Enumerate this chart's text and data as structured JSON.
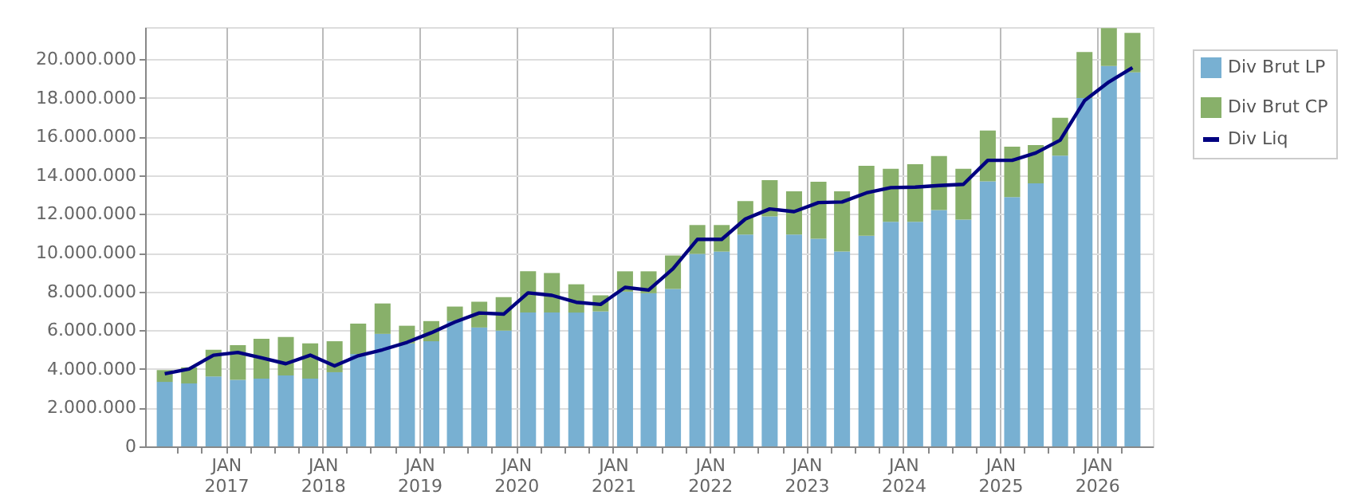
{
  "chart_data": {
    "type": "bar",
    "stacked": true,
    "grid": true,
    "legend": "right",
    "x": [
      "2016-05-15",
      "2016-08-15",
      "2016-11-15",
      "2017-02-15",
      "2017-05-15",
      "2017-08-15",
      "2017-11-15",
      "2018-02-15",
      "2018-05-15",
      "2018-08-15",
      "2018-11-15",
      "2019-02-15",
      "2019-05-15",
      "2019-08-15",
      "2019-11-15",
      "2020-02-15",
      "2020-05-15",
      "2020-08-15",
      "2020-11-15",
      "2021-02-15",
      "2021-05-15",
      "2021-08-15",
      "2021-11-15",
      "2022-02-15",
      "2022-05-15",
      "2022-08-15",
      "2022-11-15",
      "2023-02-15",
      "2023-05-15",
      "2023-08-15",
      "2023-11-15",
      "2024-02-15",
      "2024-05-15",
      "2024-08-15",
      "2024-11-15",
      "2025-02-15",
      "2025-05-15",
      "2025-08-15",
      "2025-11-15",
      "2026-02-15",
      "2026-05-15"
    ],
    "xlim": [
      "2016-04-01",
      "2026-07-01"
    ],
    "xticks": [
      {
        "value": "2016-07",
        "label": null
      },
      {
        "value": "2016-10",
        "label": null
      },
      {
        "value": "2017-01",
        "label": "JAN 2017"
      },
      {
        "value": "2017-04",
        "label": null
      },
      {
        "value": "2017-07",
        "label": null
      },
      {
        "value": "2017-10",
        "label": null
      },
      {
        "value": "2018-01",
        "label": "JAN 2018"
      },
      {
        "value": "2018-04",
        "label": null
      },
      {
        "value": "2018-07",
        "label": null
      },
      {
        "value": "2018-10",
        "label": null
      },
      {
        "value": "2019-01",
        "label": "JAN 2019"
      },
      {
        "value": "2019-04",
        "label": null
      },
      {
        "value": "2019-07",
        "label": null
      },
      {
        "value": "2019-10",
        "label": null
      },
      {
        "value": "2020-01",
        "label": "JAN 2020"
      },
      {
        "value": "2020-04",
        "label": null
      },
      {
        "value": "2020-07",
        "label": null
      },
      {
        "value": "2020-10",
        "label": null
      },
      {
        "value": "2021-01",
        "label": "JAN 2021"
      },
      {
        "value": "2021-04",
        "label": null
      },
      {
        "value": "2021-07",
        "label": null
      },
      {
        "value": "2021-10",
        "label": null
      },
      {
        "value": "2022-01",
        "label": "JAN 2022"
      },
      {
        "value": "2022-04",
        "label": null
      },
      {
        "value": "2022-07",
        "label": null
      },
      {
        "value": "2022-10",
        "label": null
      },
      {
        "value": "2023-01",
        "label": "JAN 2023"
      },
      {
        "value": "2023-04",
        "label": null
      },
      {
        "value": "2023-07",
        "label": null
      },
      {
        "value": "2023-10",
        "label": null
      },
      {
        "value": "2024-01",
        "label": "JAN 2024"
      },
      {
        "value": "2024-04",
        "label": null
      },
      {
        "value": "2024-07",
        "label": null
      },
      {
        "value": "2024-10",
        "label": null
      },
      {
        "value": "2025-01",
        "label": "JAN 2025"
      },
      {
        "value": "2025-04",
        "label": null
      },
      {
        "value": "2025-07",
        "label": null
      },
      {
        "value": "2025-10",
        "label": null
      },
      {
        "value": "2026-01",
        "label": "JAN 2026"
      },
      {
        "value": "2026-04",
        "label": null
      }
    ],
    "ylim": [
      0,
      21650000
    ],
    "yticks": [
      0,
      {
        "value": 2000000,
        "label": "2.000.000"
      },
      {
        "value": 4000000,
        "label": "4.000.000"
      },
      {
        "value": 6000000,
        "label": "6.000.000"
      },
      {
        "value": 8000000,
        "label": "8.000.000"
      },
      {
        "value": 10000000,
        "label": "10.000.000"
      },
      {
        "value": 12000000,
        "label": "12.000.000"
      },
      {
        "value": 14000000,
        "label": "14.000.000"
      },
      {
        "value": 16000000,
        "label": "16.000.000"
      },
      {
        "value": 18000000,
        "label": "18.000.000"
      },
      {
        "value": 20000000,
        "label": "20.000.000"
      }
    ],
    "series": [
      {
        "name": "Div Brut LP",
        "color": "#78b0d2",
        "values": [
          3330000,
          3250000,
          3610000,
          3440000,
          3500000,
          3660000,
          3500000,
          3830000,
          4770000,
          5810000,
          5320000,
          5430000,
          6470000,
          6140000,
          5980000,
          6910000,
          6910000,
          6910000,
          6970000,
          7990000,
          7910000,
          8130000,
          9940000,
          10060000,
          10940000,
          11870000,
          10940000,
          10720000,
          10060000,
          10880000,
          11600000,
          11600000,
          12200000,
          11710000,
          13690000,
          12870000,
          13580000,
          15010000,
          17990000,
          19640000,
          19310000
        ]
      },
      {
        "name": "Div Brut CP",
        "color": "#88b06a",
        "values": [
          610000,
          830000,
          1380000,
          1790000,
          2060000,
          1990000,
          1820000,
          1600000,
          1570000,
          1570000,
          910000,
          1040000,
          750000,
          1330000,
          1730000,
          2130000,
          2040000,
          1460000,
          830000,
          1050000,
          1130000,
          1730000,
          1490000,
          1370000,
          1730000,
          1880000,
          2230000,
          2940000,
          3110000,
          3610000,
          2730000,
          2970000,
          2790000,
          2620000,
          2620000,
          2610000,
          1980000,
          1960000,
          2370000,
          1960000,
          2040000
        ]
      },
      {
        "name": "Div Liq",
        "type": "line",
        "color": "#000080",
        "values": [
          3750000,
          4000000,
          4710000,
          4850000,
          4570000,
          4270000,
          4710000,
          4160000,
          4680000,
          4990000,
          5370000,
          5870000,
          6420000,
          6890000,
          6830000,
          7930000,
          7800000,
          7440000,
          7330000,
          8210000,
          8070000,
          9170000,
          10690000,
          10690000,
          11740000,
          12260000,
          12120000,
          12590000,
          12620000,
          13090000,
          13360000,
          13390000,
          13470000,
          13530000,
          14770000,
          14770000,
          15150000,
          15810000,
          17850000,
          18820000,
          19560000
        ]
      }
    ]
  }
}
